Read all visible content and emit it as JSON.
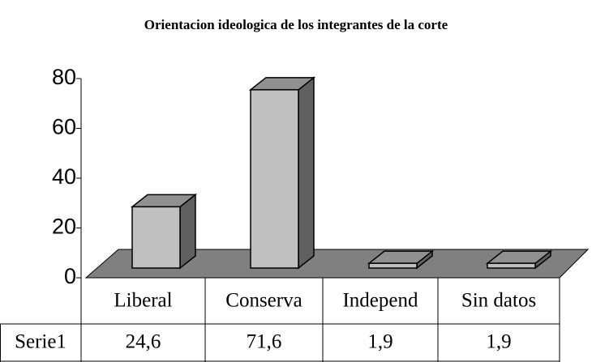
{
  "chart_data": {
    "type": "bar3d",
    "title": "Orientacion ideologica de los integrantes de la corte",
    "categories": [
      "Liberal",
      "Conserva",
      "Independ",
      "Sin datos"
    ],
    "series": [
      {
        "name": "Serie1",
        "color": "#c0c0c0",
        "values": [
          24.6,
          71.6,
          1.9,
          1.9
        ],
        "value_labels": [
          "24,6",
          "71,6",
          "1,9",
          "1,9"
        ]
      }
    ],
    "ylim": [
      0,
      80
    ],
    "yticks": [
      0,
      20,
      40,
      60,
      80
    ]
  }
}
